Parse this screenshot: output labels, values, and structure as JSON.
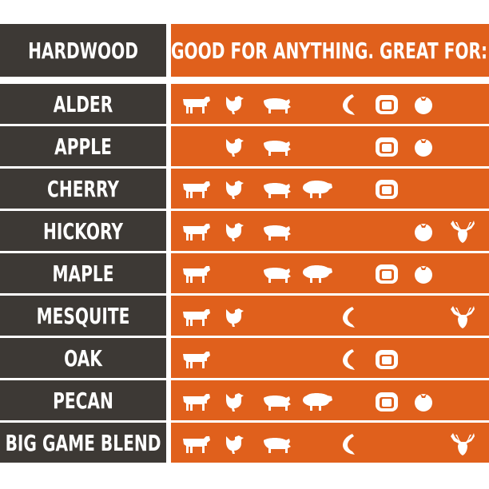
{
  "header": {
    "title": "HARDWOOD",
    "subtitle": "GOOD FOR ANYTHING. GREAT FOR:"
  },
  "rows": [
    {
      "name": "ALDER"
    },
    {
      "name": "APPLE"
    },
    {
      "name": "CHERRY"
    },
    {
      "name": "HICKORY"
    },
    {
      "name": "MAPLE"
    },
    {
      "name": "MESQUITE"
    },
    {
      "name": "OAK"
    },
    {
      "name": "PECAN"
    },
    {
      "name": "BIG GAME BLEND"
    }
  ]
}
